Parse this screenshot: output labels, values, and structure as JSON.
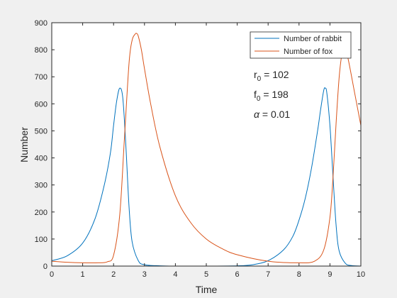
{
  "chart_data": {
    "type": "line",
    "xlabel": "Time",
    "ylabel": "Number",
    "xlim": [
      0,
      10
    ],
    "ylim": [
      0,
      900
    ],
    "xticks": [
      "0",
      "1",
      "2",
      "3",
      "4",
      "5",
      "6",
      "7",
      "8",
      "9",
      "10"
    ],
    "yticks": [
      "0",
      "100",
      "200",
      "300",
      "400",
      "500",
      "600",
      "700",
      "800",
      "900"
    ],
    "grid": false,
    "legend_position": "top-right",
    "series": [
      {
        "name": "Number of rabbit",
        "color": "#0072BD",
        "x": [
          0,
          0.5,
          1.0,
          1.4,
          1.7,
          1.9,
          2.0,
          2.1,
          2.2,
          2.3,
          2.4,
          2.5,
          2.6,
          2.8,
          3.0,
          3.5,
          4,
          5,
          6,
          6.5,
          7,
          7.5,
          7.8,
          8.0,
          8.2,
          8.4,
          8.6,
          8.7,
          8.8,
          8.85,
          8.9,
          9.0,
          9.1,
          9.2,
          9.3,
          9.5,
          9.7,
          10
        ],
        "y": [
          20,
          38,
          85,
          175,
          300,
          420,
          520,
          610,
          658,
          620,
          440,
          220,
          90,
          20,
          5,
          1,
          0,
          0,
          1,
          5,
          20,
          60,
          110,
          170,
          250,
          360,
          500,
          580,
          650,
          658,
          640,
          520,
          330,
          150,
          55,
          10,
          2,
          0
        ]
      },
      {
        "name": "Number of fox",
        "color": "#D95319",
        "x": [
          0,
          0.5,
          1.0,
          1.5,
          1.8,
          2.0,
          2.2,
          2.35,
          2.5,
          2.6,
          2.7,
          2.75,
          2.8,
          2.9,
          3.0,
          3.2,
          3.5,
          4.0,
          4.5,
          5.0,
          5.5,
          6.0,
          7.0,
          8.0,
          8.5,
          8.8,
          9.0,
          9.1,
          9.2,
          9.3,
          9.4,
          9.5,
          9.6,
          9.8,
          10
        ],
        "y": [
          18,
          14,
          12,
          12,
          16,
          40,
          190,
          470,
          750,
          835,
          858,
          860,
          850,
          800,
          730,
          600,
          440,
          260,
          160,
          100,
          65,
          42,
          18,
          12,
          18,
          60,
          180,
          330,
          530,
          700,
          790,
          800,
          760,
          640,
          520
        ]
      }
    ],
    "annotations": [
      {
        "base": "r",
        "sub": "0",
        "rest": " = 102"
      },
      {
        "base": "f",
        "sub": "0",
        "rest": " = 198"
      },
      {
        "base": "α",
        "sub": "",
        "rest": " = 0.01"
      }
    ]
  }
}
